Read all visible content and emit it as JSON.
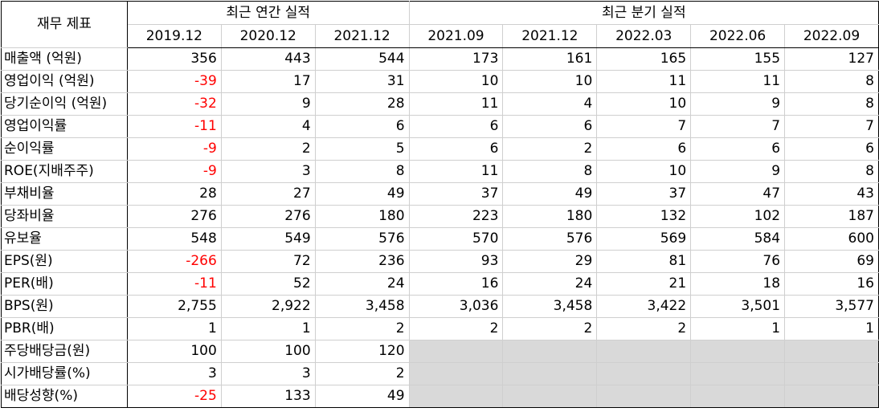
{
  "header": {
    "corner": "재무 제표",
    "annual_group": "최근 연간 실적",
    "quarter_group": "최근 분기 실적",
    "periods": [
      "2019.12",
      "2020.12",
      "2021.12",
      "2021.09",
      "2021.12",
      "2022.03",
      "2022.06",
      "2022.09"
    ]
  },
  "rows": [
    {
      "label": "매출액 (억원)",
      "values": [
        "356",
        "443",
        "544",
        "173",
        "161",
        "165",
        "155",
        "127"
      ]
    },
    {
      "label": "영업이익 (억원)",
      "values": [
        "-39",
        "17",
        "31",
        "10",
        "10",
        "11",
        "11",
        "8"
      ]
    },
    {
      "label": "당기순이익 (억원)",
      "values": [
        "-32",
        "9",
        "28",
        "11",
        "4",
        "10",
        "9",
        "8"
      ]
    },
    {
      "label": "영업이익률",
      "values": [
        "-11",
        "4",
        "6",
        "6",
        "6",
        "7",
        "7",
        "7"
      ]
    },
    {
      "label": "순이익률",
      "values": [
        "-9",
        "2",
        "5",
        "6",
        "2",
        "6",
        "6",
        "6"
      ]
    },
    {
      "label": "ROE(지배주주)",
      "values": [
        "-9",
        "3",
        "8",
        "11",
        "8",
        "10",
        "9",
        "8"
      ]
    },
    {
      "label": "부채비율",
      "values": [
        "28",
        "27",
        "49",
        "37",
        "49",
        "37",
        "47",
        "43"
      ]
    },
    {
      "label": "당좌비율",
      "values": [
        "276",
        "276",
        "180",
        "223",
        "180",
        "132",
        "102",
        "187"
      ]
    },
    {
      "label": "유보율",
      "values": [
        "548",
        "549",
        "576",
        "570",
        "576",
        "569",
        "584",
        "600"
      ]
    },
    {
      "label": "EPS(원)",
      "values": [
        "-266",
        "72",
        "236",
        "93",
        "29",
        "81",
        "76",
        "69"
      ]
    },
    {
      "label": "PER(배)",
      "values": [
        "-11",
        "52",
        "24",
        "16",
        "24",
        "21",
        "18",
        "16"
      ]
    },
    {
      "label": "BPS(원)",
      "values": [
        "2,755",
        "2,922",
        "3,458",
        "3,036",
        "3,458",
        "3,422",
        "3,501",
        "3,577"
      ]
    },
    {
      "label": "PBR(배)",
      "values": [
        "1",
        "1",
        "2",
        "2",
        "2",
        "2",
        "1",
        "1"
      ]
    },
    {
      "label": "주당배당금(원)",
      "values": [
        "100",
        "100",
        "120",
        "",
        "",
        "",
        "",
        ""
      ]
    },
    {
      "label": "시가배당률(%)",
      "values": [
        "3",
        "3",
        "2",
        "",
        "",
        "",
        "",
        ""
      ]
    },
    {
      "label": "배당성향(%)",
      "values": [
        "-25",
        "133",
        "49",
        "",
        "",
        "",
        "",
        ""
      ]
    }
  ]
}
